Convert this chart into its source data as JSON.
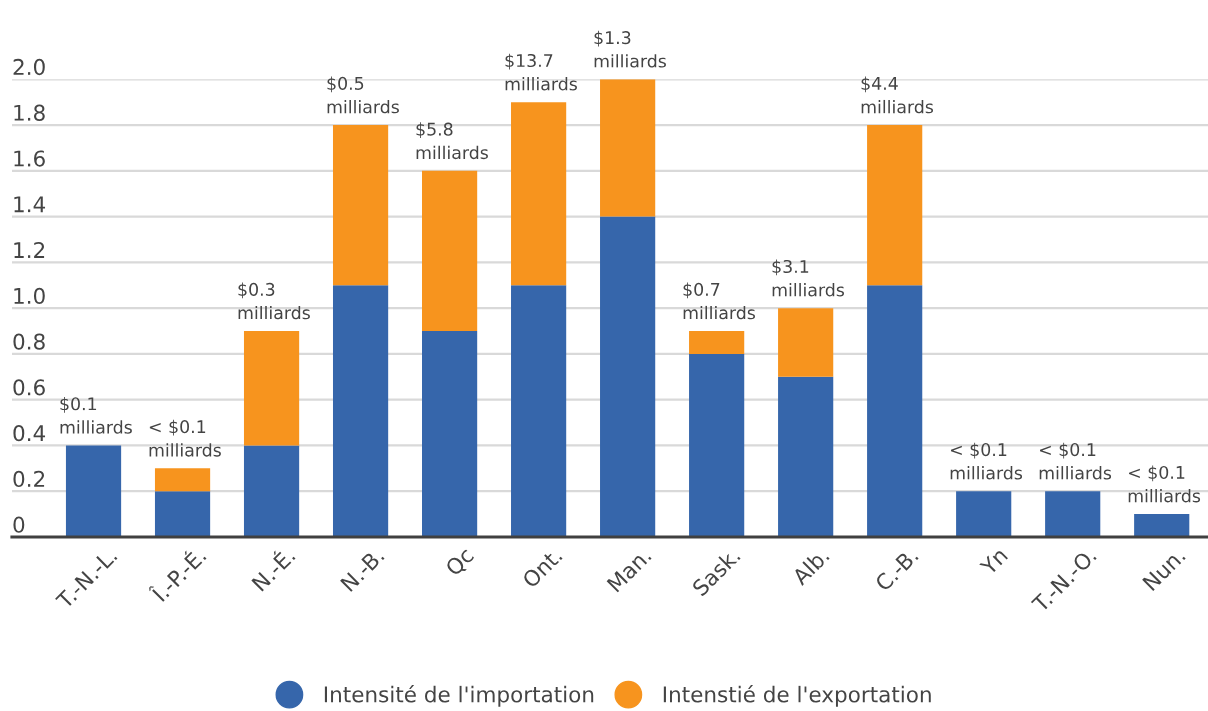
{
  "chart_data": {
    "type": "bar",
    "stacked": true,
    "categories": [
      "T.-N.-L.",
      "Î.-P.-É.",
      "N.-É.",
      "N.-B.",
      "Qc",
      "Ont.",
      "Man.",
      "Sask.",
      "Alb.",
      "C.-B.",
      "Yn",
      "T.-N.-O.",
      "Nun."
    ],
    "series": [
      {
        "name": "Intensité de l'importation",
        "color": "#3666ab",
        "values": [
          0.4,
          0.2,
          0.4,
          1.1,
          0.9,
          1.1,
          1.4,
          0.8,
          0.7,
          1.1,
          0.2,
          0.2,
          0.1
        ]
      },
      {
        "name": "Intenstié de l'exportation",
        "color": "#f7941e",
        "values": [
          null,
          0.1,
          0.5,
          0.7,
          0.7,
          0.8,
          0.6,
          0.1,
          0.3,
          0.7,
          null,
          null,
          null
        ]
      }
    ],
    "annotations": [
      {
        "text": "$0.1 milliards",
        "x": "T.-N.-L.",
        "y": 0.4
      },
      {
        "text": "< $0.1 milliards",
        "x": "Î.-P.-É.",
        "y": 0.3
      },
      {
        "text": "$0.3 milliards",
        "x": "N.-É.",
        "y": 0.9
      },
      {
        "text": "$0.5 milliards",
        "x": "N.-B.",
        "y": 1.8
      },
      {
        "text": "$5.8 milliards",
        "x": "Qc",
        "y": 1.6
      },
      {
        "text": "$13.7 milliards",
        "x": "Ont.",
        "y": 1.9
      },
      {
        "text": "$1.3 milliards",
        "x": "Man.",
        "y": 2.0
      },
      {
        "text": "$0.7 milliards",
        "x": "Sask.",
        "y": 0.9
      },
      {
        "text": "$3.1 milliards",
        "x": "Alb.",
        "y": 1.0
      },
      {
        "text": "$4.4 milliards",
        "x": "C.-B.",
        "y": 1.8
      },
      {
        "text": "< $0.1 milliards",
        "x": "Yn",
        "y": 0.2
      },
      {
        "text": "< $0.1 milliards",
        "x": "T.-N.-O.",
        "y": 0.2
      },
      {
        "text": "< $0.1 milliards",
        "x": "Nun.",
        "y": 0.1
      }
    ],
    "ylim": [
      0,
      2
    ],
    "yticks": [
      0,
      0.2,
      0.4,
      0.6,
      0.8,
      {
        "value": 1,
        "label": "1.0"
      },
      1.2,
      1.4,
      1.6,
      1.8,
      {
        "value": 2,
        "label": "2.0"
      }
    ],
    "grid": "y",
    "legend": "bottom"
  }
}
